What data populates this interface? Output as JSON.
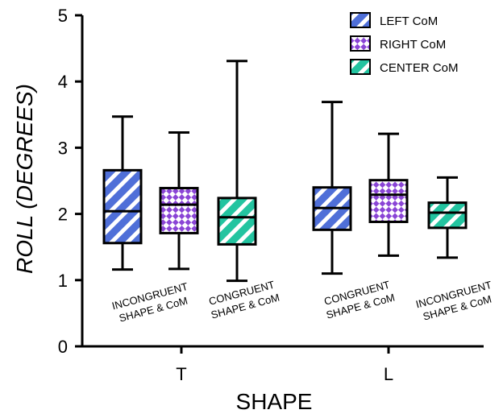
{
  "chart_data": {
    "type": "box",
    "xlabel": "SHAPE",
    "ylabel": "ROLL (DEGREES)",
    "ylim": [
      0,
      5
    ],
    "yticks": [
      0,
      1,
      2,
      3,
      4,
      5
    ],
    "categories": [
      "T",
      "L"
    ],
    "legend_position": "top-right",
    "series": [
      {
        "name": "LEFT CoM",
        "pattern": "diagonal-stripes",
        "color": "#4f6fd8"
      },
      {
        "name": "RIGHT CoM",
        "pattern": "diamond-checker",
        "color": "#8a45d6"
      },
      {
        "name": "CENTER CoM",
        "pattern": "diagonal-stripes",
        "color": "#23c4a0"
      }
    ],
    "boxes": [
      {
        "category": "T",
        "series": "LEFT CoM",
        "min": 1.16,
        "q1": 1.56,
        "median": 2.04,
        "q3": 2.66,
        "max": 3.47
      },
      {
        "category": "T",
        "series": "RIGHT CoM",
        "min": 1.17,
        "q1": 1.71,
        "median": 2.14,
        "q3": 2.39,
        "max": 3.23
      },
      {
        "category": "T",
        "series": "CENTER CoM",
        "min": 0.99,
        "q1": 1.54,
        "median": 1.95,
        "q3": 2.24,
        "max": 4.31
      },
      {
        "category": "L",
        "series": "LEFT CoM",
        "min": 1.1,
        "q1": 1.76,
        "median": 2.09,
        "q3": 2.4,
        "max": 3.69
      },
      {
        "category": "L",
        "series": "RIGHT CoM",
        "min": 1.37,
        "q1": 1.88,
        "median": 2.29,
        "q3": 2.51,
        "max": 3.21
      },
      {
        "category": "L",
        "series": "CENTER CoM",
        "min": 1.34,
        "q1": 1.79,
        "median": 2.02,
        "q3": 2.17,
        "max": 2.55
      }
    ],
    "annotations": [
      {
        "line1": "INCONGRUENT",
        "line2": "SHAPE & CoM"
      },
      {
        "line1": "CONGRUENT",
        "line2": "SHAPE & CoM"
      },
      {
        "line1": "CONGRUENT",
        "line2": "SHAPE & CoM"
      },
      {
        "line1": "INCONGRUENT",
        "line2": "SHAPE & CoM"
      }
    ]
  }
}
